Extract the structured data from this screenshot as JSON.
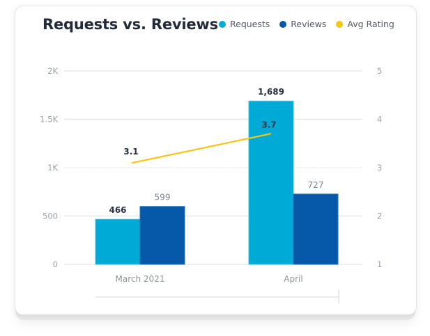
{
  "chart_data": {
    "type": "bar",
    "title": "Requests vs. Reviews",
    "categories": [
      "March 2021",
      "April"
    ],
    "series": [
      {
        "name": "Requests",
        "kind": "bar",
        "axis": "left",
        "color": "#00aad6",
        "values": [
          466,
          1689
        ],
        "labels": [
          "466",
          "1,689"
        ]
      },
      {
        "name": "Reviews",
        "kind": "bar",
        "axis": "left",
        "color": "#0559a8",
        "values": [
          599,
          727
        ],
        "labels": [
          "599",
          "727"
        ]
      },
      {
        "name": "Avg Rating",
        "kind": "line",
        "axis": "right",
        "color": "#f5c518",
        "values": [
          3.1,
          3.7
        ],
        "labels": [
          "3.1",
          "3.7"
        ]
      }
    ],
    "left_axis": {
      "ylim": [
        0,
        2000
      ],
      "ticks": [
        0,
        500,
        1000,
        1500,
        2000
      ],
      "tick_labels": [
        "0",
        "500",
        "1K",
        "1.5K",
        "2K"
      ]
    },
    "right_axis": {
      "ylim": [
        1,
        5
      ],
      "ticks": [
        1,
        2,
        3,
        4,
        5
      ],
      "tick_labels": [
        "1",
        "2",
        "3",
        "4",
        "5"
      ]
    },
    "grid": true,
    "legend_position": "top-right",
    "xlabel": "",
    "ylabel": ""
  },
  "legend": [
    {
      "label": "Requests",
      "color": "#00aad6"
    },
    {
      "label": "Reviews",
      "color": "#0559a8"
    },
    {
      "label": "Avg Rating",
      "color": "#f5c518"
    }
  ]
}
